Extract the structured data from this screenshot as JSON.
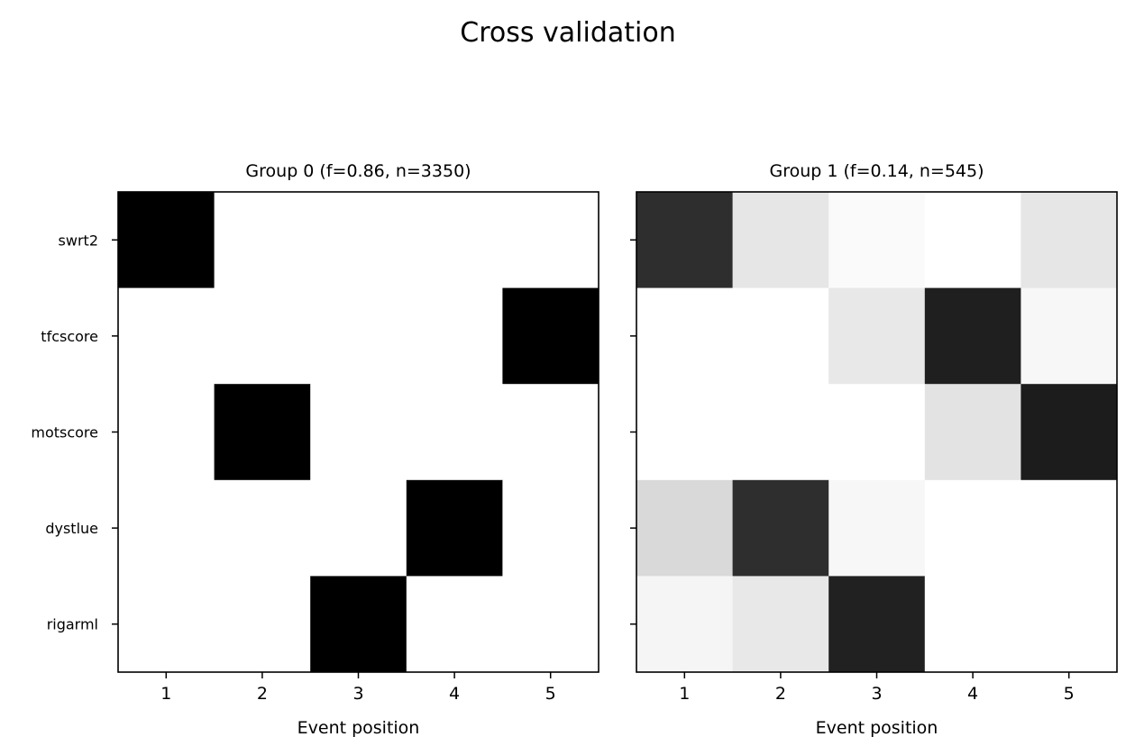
{
  "figure": {
    "title": "Cross validation"
  },
  "chart_data": [
    {
      "type": "heatmap",
      "title": "Group 0 (f=0.86, n=3350)",
      "xlabel": "Event position",
      "ylabel": "",
      "x_categories": [
        "1",
        "2",
        "3",
        "4",
        "5"
      ],
      "y_categories": [
        "swrt2",
        "tfcscore",
        "motscore",
        "dystlue",
        "rigarml"
      ],
      "colormap": "gray_r",
      "value_range": [
        0,
        1
      ],
      "grid": false,
      "values": [
        [
          1,
          0,
          0,
          0,
          0
        ],
        [
          0,
          0,
          0,
          0,
          1
        ],
        [
          0,
          1,
          0,
          0,
          0
        ],
        [
          0,
          0,
          0,
          1,
          0
        ],
        [
          0,
          0,
          1,
          0,
          0
        ]
      ]
    },
    {
      "type": "heatmap",
      "title": "Group 1 (f=0.14, n=545)",
      "xlabel": "Event position",
      "ylabel": "",
      "x_categories": [
        "1",
        "2",
        "3",
        "4",
        "5"
      ],
      "y_categories": [
        "swrt2",
        "tfcscore",
        "motscore",
        "dystlue",
        "rigarml"
      ],
      "colormap": "gray_r",
      "value_range": [
        0,
        1
      ],
      "grid": false,
      "values": [
        [
          0.82,
          0.1,
          0.02,
          0.0,
          0.1
        ],
        [
          0.0,
          0.0,
          0.09,
          0.88,
          0.03
        ],
        [
          0.0,
          0.0,
          0.0,
          0.11,
          0.89
        ],
        [
          0.15,
          0.82,
          0.03,
          0.0,
          0.0
        ],
        [
          0.04,
          0.09,
          0.87,
          0.0,
          0.0
        ]
      ]
    }
  ]
}
